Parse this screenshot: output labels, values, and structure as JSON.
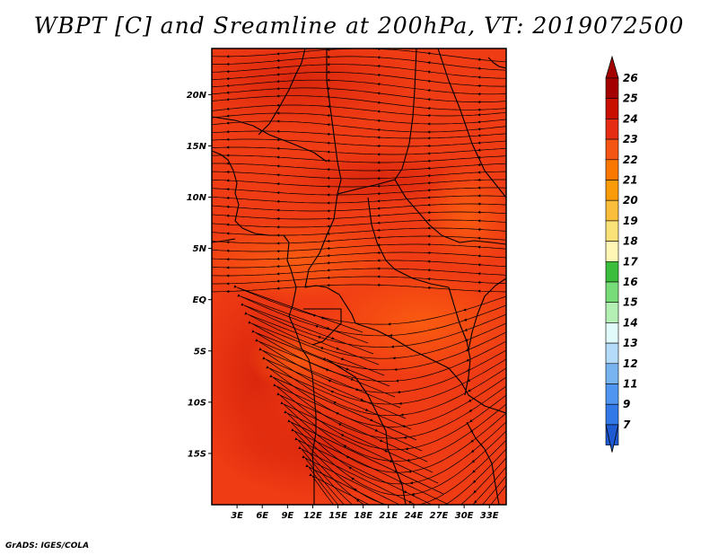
{
  "title": "WBPT [C] and Sreamline at 200hPa, VT: 2019072500",
  "credit": "GrADS: IGES/COLA",
  "map": {
    "lon_range": [
      0,
      35
    ],
    "lat_range": [
      -20,
      24.5
    ],
    "lat_ticks": [
      {
        "value": 20,
        "label": "20N"
      },
      {
        "value": 15,
        "label": "15N"
      },
      {
        "value": 10,
        "label": "10N"
      },
      {
        "value": 5,
        "label": "5N"
      },
      {
        "value": 0,
        "label": "EQ"
      },
      {
        "value": -5,
        "label": "5S"
      },
      {
        "value": -10,
        "label": "10S"
      },
      {
        "value": -15,
        "label": "15S"
      }
    ],
    "lon_ticks": [
      {
        "value": 3,
        "label": "3E"
      },
      {
        "value": 6,
        "label": "6E"
      },
      {
        "value": 9,
        "label": "9E"
      },
      {
        "value": 12,
        "label": "12E"
      },
      {
        "value": 15,
        "label": "15E"
      },
      {
        "value": 18,
        "label": "18E"
      },
      {
        "value": 21,
        "label": "21E"
      },
      {
        "value": 24,
        "label": "24E"
      },
      {
        "value": 27,
        "label": "27E"
      },
      {
        "value": 30,
        "label": "30E"
      },
      {
        "value": 33,
        "label": "33E"
      }
    ],
    "field_colors": {
      "background": "#f03c14",
      "warm": "#e02a10",
      "cool": "#fa5a0a"
    },
    "streamline_color": "#000000",
    "coastline_color": "#000000"
  },
  "colorbar": {
    "levels": [
      {
        "value": "26",
        "color": "#a50000"
      },
      {
        "value": "25",
        "color": "#c80f00"
      },
      {
        "value": "24",
        "color": "#e62d14"
      },
      {
        "value": "23",
        "color": "#f55514"
      },
      {
        "value": "22",
        "color": "#fa7800"
      },
      {
        "value": "21",
        "color": "#fa9b0a"
      },
      {
        "value": "20",
        "color": "#fabe3c"
      },
      {
        "value": "19",
        "color": "#fae178"
      },
      {
        "value": "18",
        "color": "#fff5b4"
      },
      {
        "value": "17",
        "color": "#3cbe3c"
      },
      {
        "value": "16",
        "color": "#78dc78"
      },
      {
        "value": "15",
        "color": "#b4f0b4"
      },
      {
        "value": "14",
        "color": "#e1fafa"
      },
      {
        "value": "13",
        "color": "#b4dcfa"
      },
      {
        "value": "12",
        "color": "#78b4f0"
      },
      {
        "value": "11",
        "color": "#5096f0"
      },
      {
        "value": "9",
        "color": "#3278e6"
      },
      {
        "value": "7",
        "color": "#1e5ad2"
      }
    ],
    "top_arrow_color": "#a50000",
    "bottom_arrow_color": "#1e5ad2"
  }
}
